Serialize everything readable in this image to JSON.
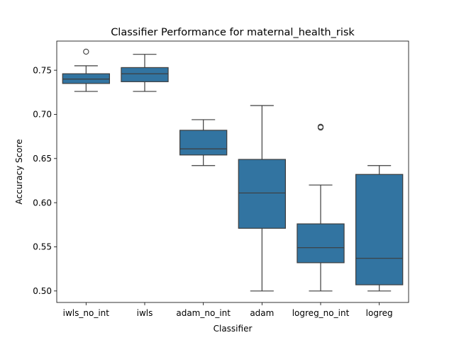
{
  "chart_data": {
    "type": "box",
    "title": "Classifier Performance for maternal_health_risk",
    "xlabel": "Classifier",
    "ylabel": "Accuracy Score",
    "categories": [
      "iwls_no_int",
      "iwls",
      "adam_no_int",
      "adam",
      "logreg_no_int",
      "logreg"
    ],
    "boxes": [
      {
        "category": "iwls_no_int",
        "whisker_low": 0.726,
        "q1": 0.735,
        "median": 0.74,
        "q3": 0.746,
        "whisker_high": 0.755,
        "outliers": [
          0.771
        ]
      },
      {
        "category": "iwls",
        "whisker_low": 0.726,
        "q1": 0.737,
        "median": 0.746,
        "q3": 0.753,
        "whisker_high": 0.768,
        "outliers": []
      },
      {
        "category": "adam_no_int",
        "whisker_low": 0.642,
        "q1": 0.654,
        "median": 0.661,
        "q3": 0.682,
        "whisker_high": 0.694,
        "outliers": []
      },
      {
        "category": "adam",
        "whisker_low": 0.5,
        "q1": 0.571,
        "median": 0.611,
        "q3": 0.649,
        "whisker_high": 0.71,
        "outliers": []
      },
      {
        "category": "logreg_no_int",
        "whisker_low": 0.5,
        "q1": 0.532,
        "median": 0.549,
        "q3": 0.576,
        "whisker_high": 0.62,
        "outliers": [
          0.685,
          0.686
        ]
      },
      {
        "category": "logreg",
        "whisker_low": 0.5,
        "q1": 0.507,
        "median": 0.537,
        "q3": 0.632,
        "whisker_high": 0.642,
        "outliers": []
      }
    ],
    "y_ticks": [
      "0.50",
      "0.55",
      "0.60",
      "0.65",
      "0.70",
      "0.75"
    ],
    "ylim": [
      0.487,
      0.783
    ],
    "grid": false,
    "box_color": "#3274a1",
    "line_color": "#3d3d3d"
  }
}
